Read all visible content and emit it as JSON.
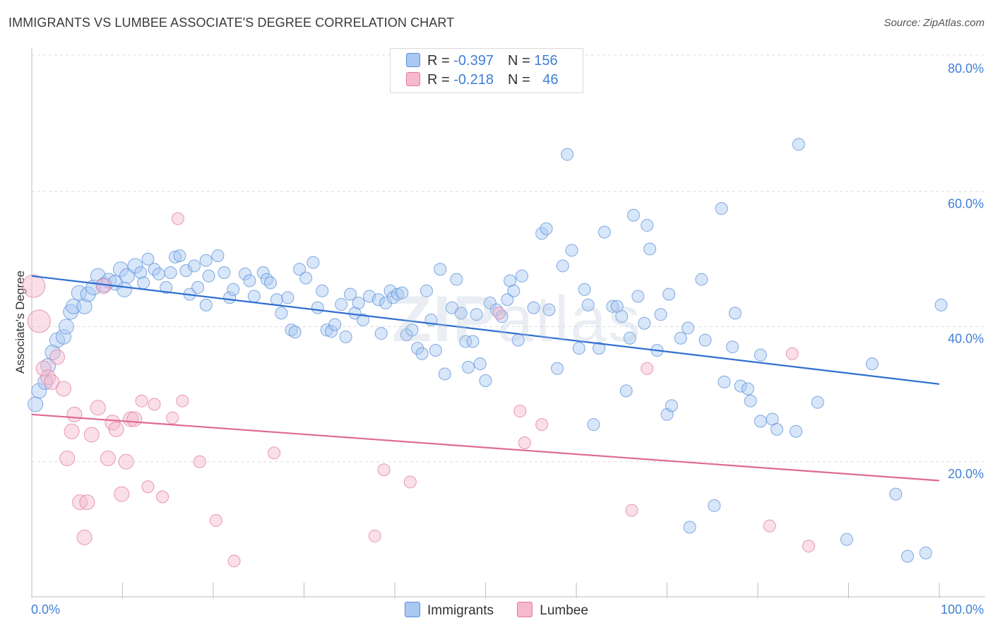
{
  "title": "IMMIGRANTS VS LUMBEE ASSOCIATE'S DEGREE CORRELATION CHART",
  "source": "Source: ZipAtlas.com",
  "watermark": {
    "bold": "ZIP",
    "thin": "atlas"
  },
  "legend": {
    "rows": [
      {
        "r_label": "R = ",
        "r_value": "-0.397",
        "n_label": "N = ",
        "n_value": "156",
        "color": "#a9c8f2",
        "border": "#5a8fd8"
      },
      {
        "r_label": "R = ",
        "r_value": "-0.218",
        "n_label": "N = ",
        "n_value": "46",
        "color": "#f5b8cc",
        "border": "#e07a9c"
      }
    ]
  },
  "bottom_legend": [
    {
      "label": "Immigrants",
      "color": "#a9c8f2",
      "border": "#5a8fd8"
    },
    {
      "label": "Lumbee",
      "color": "#f5b8cc",
      "border": "#e07a9c"
    }
  ],
  "chart_data": {
    "type": "scatter",
    "title": "IMMIGRANTS VS LUMBEE ASSOCIATE'S DEGREE CORRELATION CHART",
    "xlabel": "",
    "ylabel": "Associate's Degree",
    "xlim": [
      0,
      100
    ],
    "ylim": [
      0,
      80
    ],
    "x_tick_labels": [
      "0.0%",
      "100.0%"
    ],
    "y_ticks": [
      20,
      40,
      60,
      80
    ],
    "y_tick_labels": [
      "20.0%",
      "40.0%",
      "60.0%",
      "80.0%"
    ],
    "grid": true,
    "legend_position": "top-center",
    "series": [
      {
        "name": "Immigrants",
        "color": "#5a8fd8",
        "fill": "#a9c8f2",
        "trend": {
          "x": [
            0,
            100
          ],
          "y": [
            47.5,
            31.5
          ],
          "color": "#2f6fd0"
        },
        "points": [
          [
            0.4,
            28.5
          ],
          [
            0.8,
            30.5
          ],
          [
            1.5,
            31.8
          ],
          [
            1.8,
            34.2
          ],
          [
            2.3,
            36.2
          ],
          [
            2.8,
            38.0
          ],
          [
            3.5,
            38.5
          ],
          [
            3.8,
            40.0
          ],
          [
            4.3,
            42.2
          ],
          [
            4.6,
            43.0
          ],
          [
            5.2,
            45.0
          ],
          [
            5.8,
            43.0
          ],
          [
            6.2,
            44.8
          ],
          [
            6.8,
            45.8
          ],
          [
            7.3,
            47.5
          ],
          [
            8.0,
            46.2
          ],
          [
            8.5,
            46.8
          ],
          [
            9.2,
            46.5
          ],
          [
            9.8,
            48.5
          ],
          [
            10.5,
            47.5
          ],
          [
            10.2,
            45.5
          ],
          [
            11.4,
            49.0
          ],
          [
            12.0,
            48.0
          ],
          [
            12.3,
            46.5
          ],
          [
            12.8,
            50.0
          ],
          [
            13.5,
            48.5
          ],
          [
            14.0,
            47.8
          ],
          [
            14.8,
            45.8
          ],
          [
            15.3,
            48.0
          ],
          [
            15.8,
            50.3
          ],
          [
            16.3,
            50.5
          ],
          [
            17.0,
            48.3
          ],
          [
            17.4,
            44.8
          ],
          [
            17.9,
            49.0
          ],
          [
            18.3,
            45.8
          ],
          [
            19.2,
            49.8
          ],
          [
            19.5,
            47.5
          ],
          [
            19.2,
            43.2
          ],
          [
            20.5,
            50.5
          ],
          [
            21.2,
            48.0
          ],
          [
            21.8,
            44.3
          ],
          [
            22.2,
            45.5
          ],
          [
            23.5,
            47.8
          ],
          [
            24.0,
            46.8
          ],
          [
            24.5,
            44.5
          ],
          [
            25.5,
            48.0
          ],
          [
            25.9,
            47.0
          ],
          [
            26.3,
            46.5
          ],
          [
            27.0,
            44.0
          ],
          [
            27.5,
            42.0
          ],
          [
            28.2,
            44.3
          ],
          [
            28.6,
            39.5
          ],
          [
            29.0,
            39.2
          ],
          [
            29.5,
            48.5
          ],
          [
            30.2,
            47.2
          ],
          [
            31.5,
            42.8
          ],
          [
            31.0,
            49.5
          ],
          [
            32.0,
            45.3
          ],
          [
            32.5,
            39.5
          ],
          [
            33.0,
            39.3
          ],
          [
            33.4,
            40.3
          ],
          [
            34.1,
            43.3
          ],
          [
            34.6,
            38.5
          ],
          [
            35.1,
            44.8
          ],
          [
            35.6,
            42.0
          ],
          [
            36.0,
            43.5
          ],
          [
            36.5,
            41.0
          ],
          [
            37.2,
            44.5
          ],
          [
            38.2,
            44.0
          ],
          [
            38.5,
            39.0
          ],
          [
            39.0,
            43.5
          ],
          [
            39.5,
            45.3
          ],
          [
            39.8,
            44.3
          ],
          [
            40.3,
            44.8
          ],
          [
            40.8,
            45.0
          ],
          [
            41.3,
            38.8
          ],
          [
            41.9,
            39.5
          ],
          [
            42.5,
            36.8
          ],
          [
            43.0,
            36.0
          ],
          [
            43.5,
            45.3
          ],
          [
            44.0,
            41.0
          ],
          [
            44.5,
            36.5
          ],
          [
            45.0,
            48.5
          ],
          [
            45.5,
            33.0
          ],
          [
            46.3,
            42.8
          ],
          [
            46.8,
            47.0
          ],
          [
            47.3,
            42.0
          ],
          [
            47.8,
            37.8
          ],
          [
            48.1,
            34.0
          ],
          [
            48.6,
            37.8
          ],
          [
            49.0,
            41.8
          ],
          [
            49.4,
            34.5
          ],
          [
            50.0,
            32.0
          ],
          [
            50.5,
            43.5
          ],
          [
            51.2,
            42.5
          ],
          [
            51.8,
            41.5
          ],
          [
            52.4,
            44.0
          ],
          [
            52.7,
            46.8
          ],
          [
            53.1,
            45.3
          ],
          [
            53.6,
            38.0
          ],
          [
            54.0,
            47.5
          ],
          [
            55.3,
            42.8
          ],
          [
            56.2,
            53.8
          ],
          [
            56.7,
            54.5
          ],
          [
            57.0,
            42.5
          ],
          [
            57.9,
            33.8
          ],
          [
            58.5,
            49.0
          ],
          [
            59.0,
            65.5
          ],
          [
            59.5,
            51.3
          ],
          [
            60.3,
            36.8
          ],
          [
            60.9,
            45.5
          ],
          [
            61.3,
            43.2
          ],
          [
            61.9,
            25.5
          ],
          [
            62.5,
            36.8
          ],
          [
            63.1,
            54.0
          ],
          [
            64.0,
            43.0
          ],
          [
            64.5,
            43.0
          ],
          [
            65.0,
            41.5
          ],
          [
            65.5,
            30.5
          ],
          [
            65.9,
            38.3
          ],
          [
            66.3,
            56.5
          ],
          [
            66.8,
            44.5
          ],
          [
            67.5,
            40.5
          ],
          [
            67.8,
            55.0
          ],
          [
            68.1,
            51.5
          ],
          [
            68.9,
            36.5
          ],
          [
            69.3,
            41.8
          ],
          [
            70.0,
            27.0
          ],
          [
            70.2,
            44.8
          ],
          [
            70.5,
            28.3
          ],
          [
            71.5,
            38.3
          ],
          [
            72.3,
            39.8
          ],
          [
            72.5,
            10.3
          ],
          [
            73.8,
            47.0
          ],
          [
            74.2,
            38.0
          ],
          [
            75.2,
            13.5
          ],
          [
            76.0,
            57.5
          ],
          [
            76.3,
            31.8
          ],
          [
            77.2,
            37.0
          ],
          [
            77.5,
            42.0
          ],
          [
            78.1,
            31.2
          ],
          [
            78.9,
            30.8
          ],
          [
            79.2,
            29.0
          ],
          [
            80.3,
            26.0
          ],
          [
            80.3,
            35.8
          ],
          [
            81.6,
            26.3
          ],
          [
            82.1,
            24.8
          ],
          [
            84.2,
            24.5
          ],
          [
            84.5,
            67.0
          ],
          [
            86.6,
            28.8
          ],
          [
            89.8,
            8.5
          ],
          [
            92.6,
            34.5
          ],
          [
            95.2,
            15.2
          ],
          [
            96.5,
            6.0
          ],
          [
            98.5,
            6.5
          ],
          [
            100.2,
            43.2
          ]
        ]
      },
      {
        "name": "Lumbee",
        "color": "#e07a9c",
        "fill": "#f5b8cc",
        "trend": {
          "x": [
            0,
            100
          ],
          "y": [
            27.0,
            17.2
          ],
          "color": "#e06a92"
        },
        "points": [
          [
            0.2,
            46.0
          ],
          [
            0.8,
            40.8
          ],
          [
            1.3,
            33.8
          ],
          [
            1.8,
            32.5
          ],
          [
            2.2,
            31.8
          ],
          [
            2.8,
            35.5
          ],
          [
            3.5,
            30.8
          ],
          [
            3.9,
            20.5
          ],
          [
            4.4,
            24.5
          ],
          [
            4.7,
            27.0
          ],
          [
            5.3,
            14.0
          ],
          [
            5.8,
            8.8
          ],
          [
            6.1,
            14.0
          ],
          [
            6.6,
            24.0
          ],
          [
            7.3,
            28.0
          ],
          [
            7.9,
            46.0
          ],
          [
            8.4,
            20.5
          ],
          [
            8.9,
            25.8
          ],
          [
            9.3,
            24.8
          ],
          [
            9.9,
            15.2
          ],
          [
            10.4,
            20.0
          ],
          [
            10.9,
            26.3
          ],
          [
            11.3,
            26.3
          ],
          [
            12.1,
            29.0
          ],
          [
            12.8,
            16.3
          ],
          [
            13.5,
            28.5
          ],
          [
            14.4,
            14.8
          ],
          [
            15.5,
            26.5
          ],
          [
            16.1,
            56.0
          ],
          [
            16.6,
            29.0
          ],
          [
            18.5,
            20.0
          ],
          [
            20.3,
            11.3
          ],
          [
            22.3,
            5.3
          ],
          [
            26.7,
            21.3
          ],
          [
            37.8,
            9.0
          ],
          [
            38.8,
            18.8
          ],
          [
            41.7,
            17.0
          ],
          [
            51.5,
            42.0
          ],
          [
            53.8,
            27.5
          ],
          [
            54.3,
            22.8
          ],
          [
            56.2,
            25.5
          ],
          [
            66.1,
            12.8
          ],
          [
            67.8,
            33.8
          ],
          [
            81.3,
            10.5
          ],
          [
            83.8,
            36.0
          ],
          [
            85.6,
            7.5
          ]
        ]
      }
    ]
  }
}
